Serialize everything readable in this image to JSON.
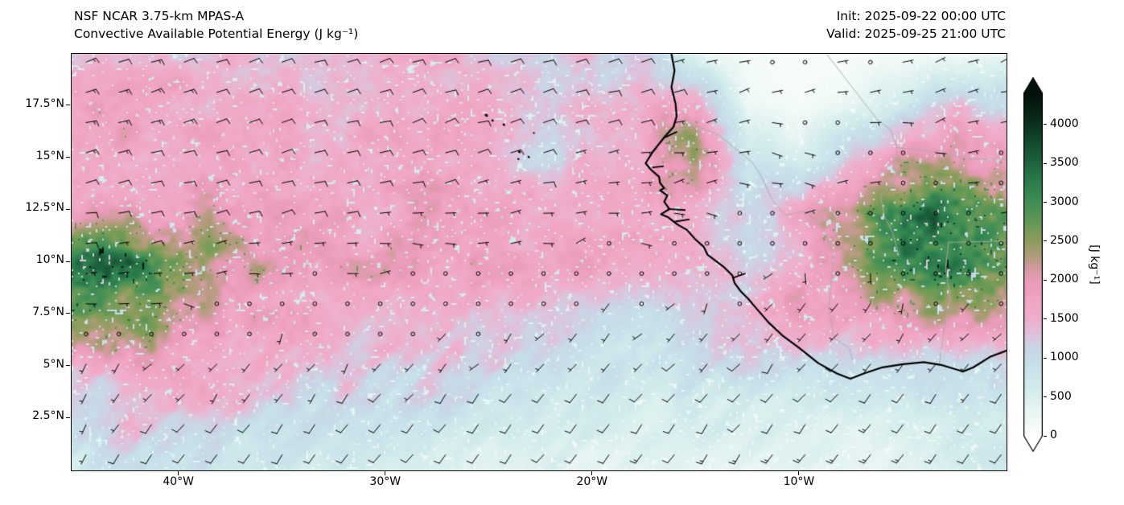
{
  "header": {
    "title_line1": "NSF NCAR 3.75-km MPAS-A",
    "title_line2": "Convective Available Potential Energy (J kg⁻¹)",
    "init_label": "Init: 2025-09-22 00:00 UTC",
    "valid_label": "Valid: 2025-09-25 21:00 UTC"
  },
  "plot": {
    "lon_range": [
      -45.2,
      0
    ],
    "lat_range": [
      0,
      20
    ],
    "x_ticks": [
      {
        "lon": -40,
        "label": "40°W"
      },
      {
        "lon": -30,
        "label": "30°W"
      },
      {
        "lon": -20,
        "label": "20°W"
      },
      {
        "lon": -10,
        "label": "10°W"
      }
    ],
    "y_ticks": [
      {
        "lat": 17.5,
        "label": "17.5°N"
      },
      {
        "lat": 15,
        "label": "15°N"
      },
      {
        "lat": 12.5,
        "label": "12.5°N"
      },
      {
        "lat": 10,
        "label": "10°N"
      },
      {
        "lat": 7.5,
        "label": "7.5°N"
      },
      {
        "lat": 5,
        "label": "5°N"
      },
      {
        "lat": 2.5,
        "label": "2.5°N"
      }
    ]
  },
  "colorbar": {
    "label": "[J kg⁻¹]",
    "vmin": 0,
    "vmax": 4400,
    "tick_values": [
      0,
      500,
      1000,
      1500,
      2000,
      2500,
      3000,
      3500,
      4000
    ],
    "stops": [
      {
        "v": 0,
        "c": "#ffffff"
      },
      {
        "v": 150,
        "c": "#f4fbf9"
      },
      {
        "v": 400,
        "c": "#e2f3f1"
      },
      {
        "v": 700,
        "c": "#cfe9ec"
      },
      {
        "v": 950,
        "c": "#c6dfe9"
      },
      {
        "v": 1150,
        "c": "#cbd4e4"
      },
      {
        "v": 1300,
        "c": "#ddc3dc"
      },
      {
        "v": 1500,
        "c": "#eeb0cd"
      },
      {
        "v": 1750,
        "c": "#f0a5c4"
      },
      {
        "v": 2000,
        "c": "#e99bb8"
      },
      {
        "v": 2150,
        "c": "#d29c9f"
      },
      {
        "v": 2300,
        "c": "#b49b7e"
      },
      {
        "v": 2500,
        "c": "#8f9d5e"
      },
      {
        "v": 2700,
        "c": "#6b9a55"
      },
      {
        "v": 2900,
        "c": "#4d9355"
      },
      {
        "v": 3100,
        "c": "#378953"
      },
      {
        "v": 3300,
        "c": "#2a7a4b"
      },
      {
        "v": 3500,
        "c": "#1f663f"
      },
      {
        "v": 3700,
        "c": "#155232"
      },
      {
        "v": 3900,
        "c": "#0e3d25"
      },
      {
        "v": 4100,
        "c": "#082a19"
      },
      {
        "v": 4400,
        "c": "#03120a"
      }
    ]
  },
  "chart_data": {
    "type": "heatmap",
    "title": "NSF NCAR 3.75-km MPAS-A — Convective Available Potential Energy",
    "units": "J kg⁻¹",
    "overlay": "wind barbs (kt), calm shown as open circles",
    "value_range": [
      0,
      4400
    ],
    "grid_lons": [
      -45,
      -42.5,
      -40,
      -37.5,
      -35,
      -32.5,
      -30,
      -27.5,
      -25,
      -22.5,
      -20,
      -17.5,
      -15,
      -12.5,
      -10,
      -7.5,
      -5,
      -2.5,
      0
    ],
    "grid_lats": [
      20,
      17.5,
      15,
      12.5,
      10,
      7.5,
      5,
      2.5,
      0
    ],
    "cape_values": [
      [
        1450,
        1500,
        1450,
        1350,
        1300,
        1350,
        1400,
        1450,
        1400,
        1300,
        1250,
        1100,
        350,
        150,
        100,
        100,
        150,
        200,
        250
      ],
      [
        1650,
        1700,
        1650,
        1600,
        1550,
        1500,
        1550,
        1600,
        1500,
        1250,
        1350,
        1600,
        1800,
        250,
        150,
        300,
        700,
        1300,
        1100
      ],
      [
        1700,
        1750,
        1700,
        1650,
        1650,
        1600,
        1650,
        1650,
        1400,
        1100,
        1400,
        1700,
        2700,
        800,
        500,
        1200,
        1900,
        2100,
        1800
      ],
      [
        1850,
        1900,
        1850,
        1800,
        1750,
        1750,
        1700,
        1750,
        1800,
        1750,
        1700,
        1800,
        1600,
        1000,
        1700,
        2100,
        2900,
        3400,
        2600
      ],
      [
        3100,
        3200,
        2700,
        2100,
        1900,
        1800,
        1800,
        1750,
        1800,
        1800,
        1750,
        1600,
        1500,
        1000,
        1600,
        2200,
        3000,
        3300,
        2700
      ],
      [
        2500,
        2600,
        2200,
        1900,
        1750,
        1650,
        1600,
        1500,
        1400,
        1200,
        1000,
        900,
        1100,
        1500,
        1800,
        1700,
        1900,
        2300,
        2100
      ],
      [
        1700,
        1800,
        1650,
        1500,
        1450,
        1350,
        1300,
        1250,
        1150,
        1000,
        900,
        800,
        900,
        1000,
        1100,
        1000,
        900,
        1000,
        1100
      ],
      [
        1050,
        1150,
        1200,
        1100,
        1000,
        950,
        850,
        750,
        700,
        650,
        600,
        550,
        600,
        550,
        500,
        450,
        500,
        600,
        700
      ],
      [
        750,
        850,
        900,
        800,
        700,
        650,
        550,
        500,
        450,
        420,
        380,
        350,
        400,
        350,
        320,
        320,
        380,
        480,
        580
      ]
    ],
    "wind_units": "kt",
    "wind_u_kt": [
      [
        -12,
        -12,
        -12,
        -11,
        -11,
        -10,
        -10,
        -10,
        -10,
        -10,
        -9,
        -8,
        -6,
        -4,
        -3,
        -3,
        -4,
        -5,
        -5
      ],
      [
        -13,
        -13,
        -12,
        -12,
        -11,
        -11,
        -10,
        -10,
        -10,
        -9,
        -9,
        -8,
        -7,
        -5,
        -3,
        -2,
        -3,
        -4,
        -4
      ],
      [
        -12,
        -12,
        -11,
        -11,
        -10,
        -10,
        -9,
        -9,
        -8,
        -8,
        -7,
        -6,
        -5,
        -4,
        -3,
        -3,
        -3,
        -3,
        -3
      ],
      [
        -10,
        -10,
        -9,
        -9,
        -8,
        -8,
        -7,
        -7,
        -6,
        -5,
        -5,
        -4,
        -3,
        -2,
        -2,
        -2,
        -2,
        -2,
        -2
      ],
      [
        -8,
        -7,
        -6,
        -5,
        -4,
        -3,
        -3,
        -2,
        -2,
        -2,
        -1,
        -1,
        -1,
        0,
        0,
        -1,
        -1,
        -1,
        -1
      ],
      [
        -4,
        -3,
        -2,
        -1,
        0,
        0,
        1,
        1,
        1,
        1,
        2,
        2,
        2,
        3,
        3,
        3,
        2,
        2,
        2
      ],
      [
        2,
        2,
        3,
        3,
        3,
        3,
        3,
        4,
        4,
        4,
        4,
        5,
        5,
        5,
        5,
        5,
        4,
        4,
        4
      ],
      [
        4,
        4,
        5,
        5,
        5,
        5,
        6,
        6,
        6,
        6,
        6,
        7,
        7,
        7,
        7,
        7,
        7,
        6,
        6
      ],
      [
        5,
        5,
        6,
        6,
        6,
        7,
        7,
        7,
        7,
        8,
        8,
        8,
        8,
        8,
        9,
        9,
        9,
        8,
        8
      ]
    ],
    "wind_v_kt": [
      [
        -4,
        -4,
        -4,
        -4,
        -3,
        -3,
        -3,
        -3,
        -3,
        -3,
        -3,
        -2,
        -2,
        -1,
        0,
        0,
        -1,
        -2,
        -2
      ],
      [
        -4,
        -4,
        -4,
        -4,
        -4,
        -3,
        -3,
        -3,
        -3,
        -3,
        -2,
        -2,
        -2,
        -1,
        0,
        0,
        -1,
        -1,
        -1
      ],
      [
        -3,
        -3,
        -3,
        -3,
        -3,
        -2,
        -2,
        -2,
        -2,
        -2,
        -2,
        -1,
        -1,
        0,
        0,
        0,
        0,
        0,
        0
      ],
      [
        -2,
        -2,
        -2,
        -2,
        -2,
        -1,
        -1,
        -1,
        -1,
        -1,
        0,
        0,
        0,
        0,
        0,
        0,
        0,
        0,
        0
      ],
      [
        -1,
        -1,
        -1,
        0,
        0,
        0,
        0,
        0,
        0,
        0,
        0,
        0,
        0,
        1,
        1,
        1,
        1,
        0,
        0
      ],
      [
        0,
        0,
        0,
        1,
        1,
        1,
        1,
        1,
        1,
        2,
        2,
        2,
        3,
        3,
        3,
        3,
        3,
        2,
        2
      ],
      [
        3,
        3,
        3,
        4,
        4,
        4,
        4,
        4,
        5,
        5,
        5,
        5,
        6,
        6,
        6,
        6,
        6,
        5,
        5
      ],
      [
        6,
        6,
        6,
        7,
        7,
        7,
        7,
        8,
        8,
        8,
        8,
        8,
        9,
        9,
        9,
        9,
        9,
        8,
        8
      ],
      [
        8,
        8,
        9,
        9,
        9,
        9,
        10,
        10,
        10,
        10,
        11,
        11,
        11,
        11,
        12,
        12,
        12,
        11,
        11
      ]
    ]
  },
  "map": {
    "coastline": [
      [
        -16.2,
        20.0
      ],
      [
        -16.05,
        19.2
      ],
      [
        -16.2,
        18.4
      ],
      [
        -16.0,
        17.6
      ],
      [
        -15.95,
        17.0
      ],
      [
        -16.1,
        16.5
      ],
      [
        -16.5,
        16.05
      ],
      [
        -17.1,
        15.3
      ],
      [
        -17.45,
        14.75
      ],
      [
        -17.2,
        14.45
      ],
      [
        -16.8,
        14.1
      ],
      [
        -16.75,
        13.8
      ],
      [
        -16.55,
        13.55
      ],
      [
        -16.75,
        13.45
      ],
      [
        -16.4,
        13.2
      ],
      [
        -16.55,
        12.9
      ],
      [
        -16.3,
        12.55
      ],
      [
        -16.7,
        12.3
      ],
      [
        -16.35,
        12.15
      ],
      [
        -15.9,
        11.8
      ],
      [
        -15.45,
        11.55
      ],
      [
        -15.05,
        11.1
      ],
      [
        -14.65,
        10.75
      ],
      [
        -14.45,
        10.35
      ],
      [
        -14.05,
        10.05
      ],
      [
        -13.65,
        9.75
      ],
      [
        -13.25,
        9.35
      ],
      [
        -13.15,
        9.0
      ],
      [
        -12.85,
        8.6
      ],
      [
        -12.5,
        8.25
      ],
      [
        -12.2,
        7.9
      ],
      [
        -11.5,
        7.1
      ],
      [
        -10.8,
        6.45
      ],
      [
        -10.05,
        5.9
      ],
      [
        -9.1,
        5.15
      ],
      [
        -8.2,
        4.65
      ],
      [
        -7.55,
        4.4
      ],
      [
        -6.9,
        4.65
      ],
      [
        -6.0,
        4.95
      ],
      [
        -5.0,
        5.1
      ],
      [
        -4.0,
        5.2
      ],
      [
        -3.1,
        5.05
      ],
      [
        -2.1,
        4.75
      ],
      [
        -1.6,
        4.95
      ],
      [
        -0.8,
        5.45
      ],
      [
        0.0,
        5.75
      ]
    ],
    "estuaries": [
      [
        [
          -16.5,
          16.0
        ],
        [
          -15.95,
          16.25
        ]
      ],
      [
        [
          -17.1,
          14.55
        ],
        [
          -16.6,
          14.6
        ]
      ],
      [
        [
          -16.35,
          12.55
        ],
        [
          -15.55,
          12.5
        ]
      ],
      [
        [
          -16.0,
          11.95
        ],
        [
          -15.35,
          12.05
        ]
      ],
      [
        [
          -13.2,
          9.25
        ],
        [
          -12.65,
          9.45
        ]
      ]
    ],
    "islands": [
      [
        -25.15,
        17.05,
        2.2
      ],
      [
        -24.85,
        16.8,
        1.6
      ],
      [
        -24.3,
        16.6,
        1.8
      ],
      [
        -23.55,
        15.3,
        2.0
      ],
      [
        -23.1,
        15.05,
        1.6
      ],
      [
        -23.6,
        14.95,
        1.4
      ],
      [
        -22.85,
        16.2,
        1.3
      ]
    ],
    "borders": [
      [
        [
          -8.7,
          20.0
        ],
        [
          -6.3,
          16.9
        ],
        [
          -5.6,
          16.35
        ],
        [
          -5.3,
          15.5
        ]
      ],
      [
        [
          -5.3,
          15.5
        ],
        [
          -3.3,
          15.3
        ],
        [
          -1.8,
          14.95
        ],
        [
          0.0,
          14.95
        ]
      ],
      [
        [
          -16.4,
          16.1
        ],
        [
          -15.1,
          16.6
        ],
        [
          -13.9,
          16.1
        ],
        [
          -12.3,
          14.8
        ],
        [
          -11.9,
          14.2
        ]
      ],
      [
        [
          -11.9,
          14.2
        ],
        [
          -11.3,
          12.95
        ],
        [
          -10.7,
          12.25
        ],
        [
          -9.7,
          12.45
        ],
        [
          -8.8,
          11.5
        ],
        [
          -8.35,
          10.25
        ]
      ],
      [
        [
          -8.35,
          10.25
        ],
        [
          -8.6,
          7.7
        ],
        [
          -8.3,
          6.3
        ],
        [
          -7.6,
          5.9
        ],
        [
          -7.45,
          5.3
        ]
      ],
      [
        [
          -3.25,
          5.1
        ],
        [
          -3.05,
          6.6
        ],
        [
          -2.7,
          8.2
        ],
        [
          -2.95,
          9.7
        ],
        [
          -2.8,
          10.95
        ]
      ],
      [
        [
          -2.8,
          10.95
        ],
        [
          -0.7,
          11.0
        ],
        [
          0.0,
          11.05
        ]
      ],
      [
        [
          -5.3,
          15.5
        ],
        [
          -5.45,
          13.8
        ],
        [
          -6.1,
          13.2
        ],
        [
          -5.9,
          12.2
        ],
        [
          -5.5,
          11.4
        ],
        [
          -5.2,
          10.3
        ]
      ]
    ]
  }
}
